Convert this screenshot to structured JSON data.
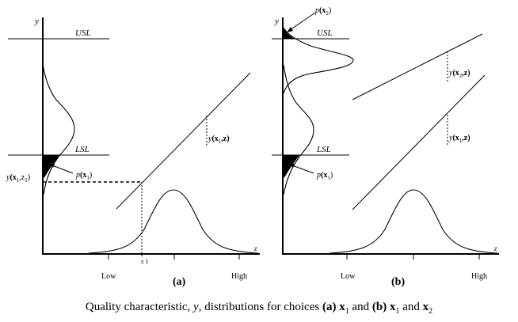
{
  "panel_a": {
    "y_axis_label": "y",
    "usl_label": "USL",
    "lsl_label": "LSL",
    "response_label_y": "y",
    "response_label_arg": "(x",
    "response_label_sub": "1",
    "response_label_end": ",z)",
    "yx1z1_label_y": "y",
    "yx1z1_label_arg": "(x",
    "yx1z1_label_sub": "1",
    "yx1z1_label_mid": ",z",
    "yx1z1_label_sub2": "1",
    "yx1z1_label_end": ")",
    "p_label": "p",
    "p_label_arg": "(x",
    "p_label_sub": "1",
    "p_label_end": ")",
    "z1_label": "z 1",
    "z_axis_label": "z",
    "low_label": "Low",
    "high_label": "High",
    "panel_label": "(a)"
  },
  "panel_b": {
    "y_axis_label": "y",
    "usl_label": "USL",
    "lsl_label": "LSL",
    "p2_label": "p",
    "p2_label_arg": "(x",
    "p2_label_sub": "2",
    "p2_label_end": ")",
    "p1_label": "p",
    "p1_label_arg": "(x",
    "p1_label_sub": "1",
    "p1_label_end": ")",
    "resp2_label_y": "y",
    "resp2_label_arg": "(x",
    "resp2_label_sub": "2",
    "resp2_label_end": ",z)",
    "resp1_label_y": "y",
    "resp1_label_arg": "(x",
    "resp1_label_sub": "1",
    "resp1_label_end": ",z)",
    "z_axis_label": "z",
    "low_label": "Low",
    "high_label": "High",
    "panel_label": "(b)"
  },
  "caption": {
    "prefix": "Quality characteristic, ",
    "y": "y",
    "middle": ", distributions for choices ",
    "a": "(a)",
    "x": "x",
    "sub1": "1",
    "and": " and ",
    "b": "(b)",
    "x_b1": "x",
    "sub_b1": "1",
    "and2": " and ",
    "x_b2": "x",
    "sub_b2": "2"
  }
}
